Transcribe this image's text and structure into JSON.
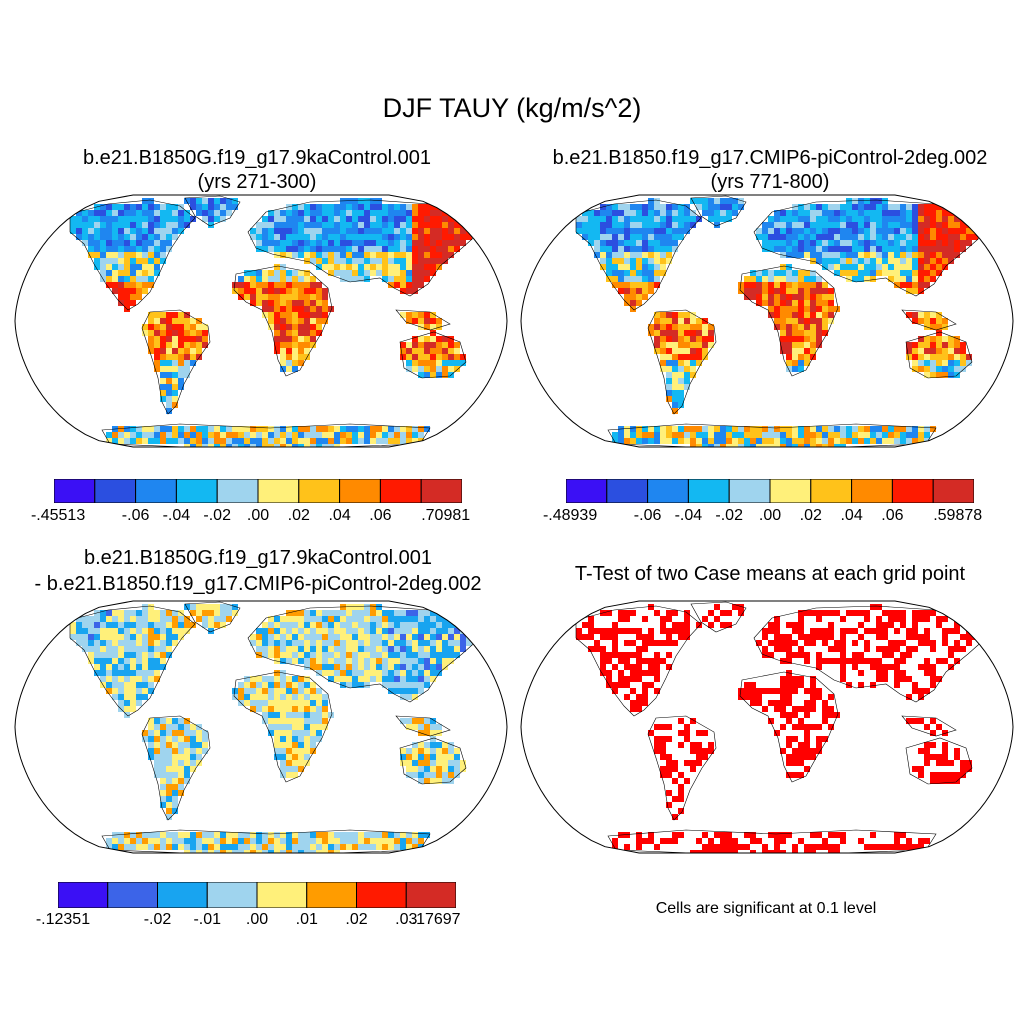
{
  "main_title": "DJF TAUY (kg/m/s^2)",
  "panels": [
    {
      "id": "case1",
      "title_line1": "b.e21.B1850G.f19_g17.9kaControl.001",
      "title_line2": "(yrs 271-300)",
      "colorbar": {
        "colors": [
          "#3b10f5",
          "#2b4fe0",
          "#1f86f0",
          "#13b8f2",
          "#9fd4ee",
          "#fff07a",
          "#ffc21a",
          "#ff8a00",
          "#ff1a00",
          "#d42b25"
        ],
        "labels": [
          "-.45513",
          "-.06",
          "-.04",
          "-.02",
          ".00",
          ".02",
          ".04",
          ".06",
          ".70981"
        ]
      }
    },
    {
      "id": "case2",
      "title_line1": "b.e21.B1850.f19_g17.CMIP6-piControl-2deg.002",
      "title_line2": "(yrs 771-800)",
      "colorbar": {
        "colors": [
          "#3b10f5",
          "#2b4fe0",
          "#1f86f0",
          "#13b8f2",
          "#9fd4ee",
          "#fff07a",
          "#ffc21a",
          "#ff8a00",
          "#ff1a00",
          "#d42b25"
        ],
        "labels": [
          "-.48939",
          "-.06",
          "-.04",
          "-.02",
          ".00",
          ".02",
          ".04",
          ".06",
          ".59878"
        ]
      }
    },
    {
      "id": "diff",
      "title_line1": "b.e21.B1850G.f19_g17.9kaControl.001",
      "title_line2": "- b.e21.B1850.f19_g17.CMIP6-piControl-2deg.002",
      "colorbar": {
        "colors": [
          "#3b10f5",
          "#3c64e8",
          "#18a4f0",
          "#9fd4ee",
          "#fff07a",
          "#ff9c00",
          "#ff1a00",
          "#d42b25"
        ],
        "labels": [
          "-.12351",
          "-.02",
          "-.01",
          ".00",
          ".01",
          ".02",
          ".03",
          ".17697"
        ]
      }
    },
    {
      "id": "ttest",
      "title_line1": "T-Test of two Case means at each grid point",
      "note": "Cells are significant at 0.1 level"
    }
  ]
}
